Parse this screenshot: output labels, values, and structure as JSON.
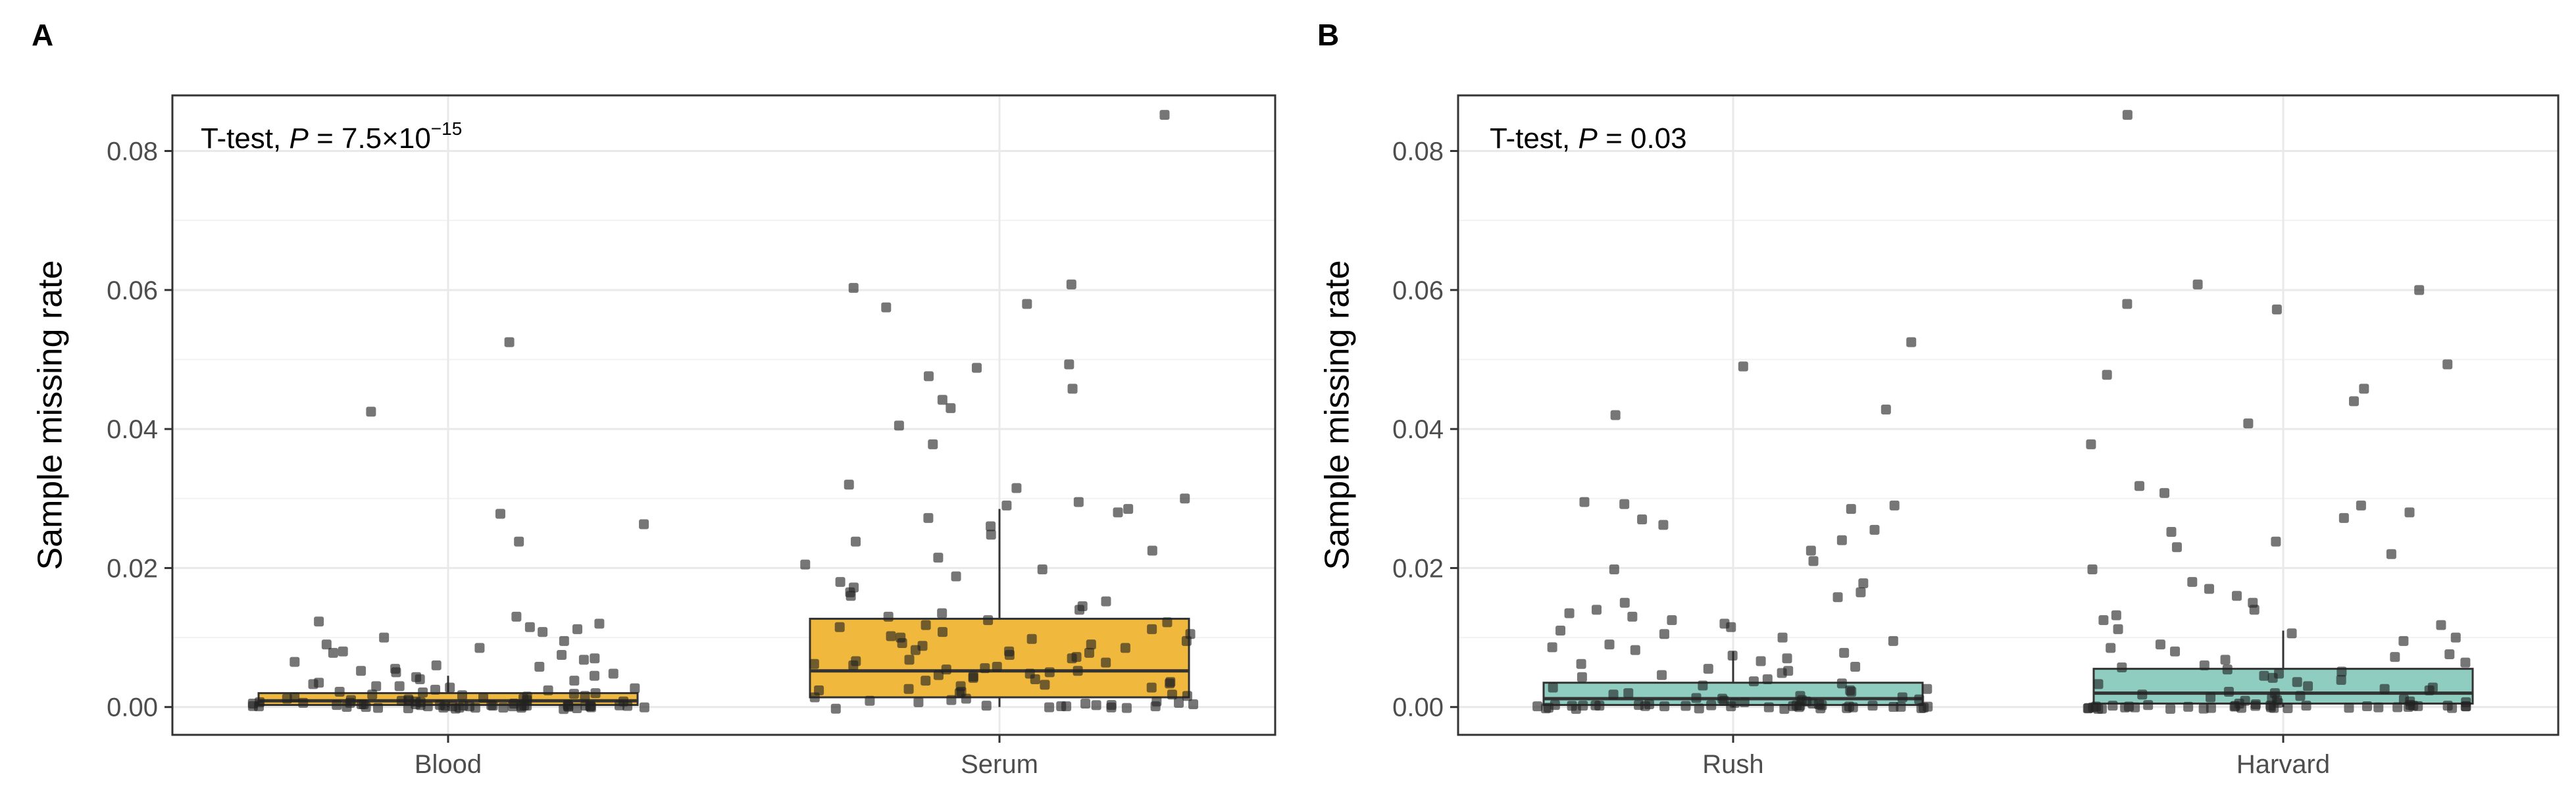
{
  "panels": [
    {
      "letter": "A",
      "test_label": "T-test, ",
      "p_symbol": "P",
      "p_value": " = 7.5×10",
      "p_exponent": "−15"
    },
    {
      "letter": "B",
      "test_label": "T-test, ",
      "p_symbol": "P",
      "p_value": " = 0.03",
      "p_exponent": ""
    }
  ],
  "colors": {
    "panel_a_box": "#F0B93E",
    "panel_b_box": "#8ECDBF",
    "point": "#222222",
    "grid": "#e9e9e9",
    "frame": "#333333"
  },
  "chart_data": [
    {
      "type": "box",
      "title": "",
      "xlabel": "",
      "ylabel": "Sample missing rate",
      "ylim": [
        -0.004,
        0.088
      ],
      "yticks": [
        0.0,
        0.02,
        0.04,
        0.06,
        0.08
      ],
      "ytick_labels": [
        "0.00",
        "0.02",
        "0.04",
        "0.06",
        "0.08"
      ],
      "grid": true,
      "categories": [
        "Blood",
        "Serum"
      ],
      "boxes": [
        {
          "category": "Blood",
          "q1": 0.0003,
          "median": 0.0009,
          "q3": 0.002,
          "whisker_low": 0.0,
          "whisker_high": 0.0045,
          "color": "#F0B93E"
        },
        {
          "category": "Serum",
          "q1": 0.0014,
          "median": 0.0052,
          "q3": 0.0127,
          "whisker_low": 0.0,
          "whisker_high": 0.0285,
          "color": "#F0B93E"
        }
      ],
      "points": [
        {
          "category": "Blood",
          "values": [
            0.0525,
            0.0425,
            0.0278,
            0.0263,
            0.0238,
            0.013,
            0.0123,
            0.012,
            0.0115,
            0.0112,
            0.0108,
            0.01,
            0.0095,
            0.009,
            0.0085,
            0.008,
            0.0078,
            0.0075,
            0.007,
            0.0068,
            0.0065,
            0.006,
            0.0058,
            0.0055,
            0.0052,
            0.005,
            0.0048,
            0.0045,
            0.0043,
            0.004,
            0.0038,
            0.0035,
            0.0033,
            0.003,
            0.003,
            0.0028,
            0.0027,
            0.0025,
            0.0024,
            0.0022,
            0.0021,
            0.002,
            0.0019,
            0.0018,
            0.0017,
            0.0016,
            0.0015,
            0.0014,
            0.0013,
            0.0012,
            0.0012,
            0.0011,
            0.001,
            0.001,
            0.0009,
            0.0009,
            0.0008,
            0.0008,
            0.0007,
            0.0007,
            0.0006,
            0.0006,
            0.0005,
            0.0005,
            0.0004,
            0.0004,
            0.0004,
            0.0003,
            0.0003,
            0.0003,
            0.0002,
            0.0002,
            0.0002,
            0.0002,
            0.0001,
            0.0001,
            0.0001,
            0.0001,
            0.0001,
            0.0,
            0.0,
            0.0,
            0.0,
            0.0,
            0.0,
            0.0,
            0.0,
            0.0,
            0.0,
            0.0,
            0.0,
            0.0,
            0.0,
            0.0,
            0.0,
            0.0,
            0.0,
            0.0,
            0.0,
            0.0,
            0.0,
            0.0,
            0.0,
            0.0,
            0.0
          ]
        },
        {
          "category": "Serum",
          "values": [
            0.0852,
            0.0608,
            0.0603,
            0.058,
            0.0575,
            0.0493,
            0.0488,
            0.0476,
            0.0458,
            0.0442,
            0.043,
            0.0405,
            0.0378,
            0.032,
            0.0315,
            0.03,
            0.0295,
            0.029,
            0.0285,
            0.028,
            0.0272,
            0.026,
            0.0248,
            0.0238,
            0.0225,
            0.0215,
            0.0205,
            0.0198,
            0.0188,
            0.018,
            0.0172,
            0.0165,
            0.016,
            0.0152,
            0.0145,
            0.014,
            0.0135,
            0.013,
            0.0125,
            0.0122,
            0.0118,
            0.0115,
            0.0112,
            0.0108,
            0.0105,
            0.0102,
            0.01,
            0.0098,
            0.0095,
            0.0092,
            0.009,
            0.0088,
            0.0085,
            0.0082,
            0.008,
            0.0078,
            0.0075,
            0.0072,
            0.007,
            0.0068,
            0.0066,
            0.0064,
            0.0062,
            0.006,
            0.0058,
            0.0056,
            0.0054,
            0.0052,
            0.005,
            0.0048,
            0.0046,
            0.0044,
            0.0042,
            0.004,
            0.0038,
            0.0036,
            0.0034,
            0.0032,
            0.003,
            0.0028,
            0.0026,
            0.0024,
            0.0022,
            0.002,
            0.0018,
            0.0016,
            0.0014,
            0.0012,
            0.001,
            0.0009,
            0.0008,
            0.0007,
            0.0006,
            0.0005,
            0.0004,
            0.0003,
            0.0002,
            0.0001,
            0.0,
            0.0,
            0.0,
            0.0,
            0.0,
            0.0,
            0.0
          ]
        }
      ]
    },
    {
      "type": "box",
      "title": "",
      "xlabel": "",
      "ylabel": "Sample missing rate",
      "ylim": [
        -0.004,
        0.088
      ],
      "yticks": [
        0.0,
        0.02,
        0.04,
        0.06,
        0.08
      ],
      "ytick_labels": [
        "0.00",
        "0.02",
        "0.04",
        "0.06",
        "0.08"
      ],
      "grid": true,
      "categories": [
        "Rush",
        "Harvard"
      ],
      "boxes": [
        {
          "category": "Rush",
          "q1": 0.0003,
          "median": 0.0012,
          "q3": 0.0035,
          "whisker_low": 0.0,
          "whisker_high": 0.008,
          "color": "#8ECDBF"
        },
        {
          "category": "Harvard",
          "q1": 0.0005,
          "median": 0.002,
          "q3": 0.0055,
          "whisker_low": 0.0,
          "whisker_high": 0.011,
          "color": "#8ECDBF"
        }
      ],
      "points": [
        {
          "category": "Rush",
          "values": [
            0.0525,
            0.049,
            0.0428,
            0.042,
            0.0295,
            0.0292,
            0.029,
            0.0285,
            0.027,
            0.0262,
            0.0255,
            0.024,
            0.0225,
            0.021,
            0.0198,
            0.0178,
            0.0165,
            0.0158,
            0.015,
            0.014,
            0.0135,
            0.013,
            0.0125,
            0.012,
            0.0115,
            0.011,
            0.0105,
            0.01,
            0.0095,
            0.009,
            0.0086,
            0.0082,
            0.0078,
            0.0074,
            0.007,
            0.0066,
            0.0062,
            0.0058,
            0.0055,
            0.0052,
            0.0049,
            0.0046,
            0.0043,
            0.004,
            0.0037,
            0.0034,
            0.0031,
            0.0028,
            0.0026,
            0.0024,
            0.0022,
            0.002,
            0.0018,
            0.0016,
            0.0014,
            0.0013,
            0.0012,
            0.0011,
            0.001,
            0.0009,
            0.0008,
            0.0007,
            0.0006,
            0.0005,
            0.0004,
            0.0004,
            0.0003,
            0.0003,
            0.0002,
            0.0002,
            0.0001,
            0.0001,
            0.0001,
            0.0,
            0.0,
            0.0,
            0.0,
            0.0,
            0.0,
            0.0,
            0.0,
            0.0,
            0.0,
            0.0,
            0.0,
            0.0,
            0.0,
            0.0,
            0.0,
            0.0,
            0.0,
            0.0,
            0.0,
            0.0,
            0.0,
            0.0,
            0.0,
            0.0,
            0.0
          ]
        },
        {
          "category": "Harvard",
          "values": [
            0.0852,
            0.0608,
            0.06,
            0.058,
            0.0572,
            0.0493,
            0.0478,
            0.0458,
            0.044,
            0.0408,
            0.0378,
            0.0318,
            0.0308,
            0.029,
            0.028,
            0.0272,
            0.0252,
            0.0238,
            0.023,
            0.022,
            0.0198,
            0.018,
            0.017,
            0.016,
            0.015,
            0.014,
            0.0132,
            0.0125,
            0.0118,
            0.0112,
            0.0106,
            0.01,
            0.0095,
            0.009,
            0.0085,
            0.008,
            0.0076,
            0.0072,
            0.0068,
            0.0064,
            0.006,
            0.0057,
            0.0054,
            0.0051,
            0.0048,
            0.0045,
            0.0042,
            0.0039,
            0.0036,
            0.0033,
            0.003,
            0.0028,
            0.0026,
            0.0024,
            0.0022,
            0.002,
            0.0018,
            0.0016,
            0.0014,
            0.0012,
            0.0011,
            0.001,
            0.0009,
            0.0008,
            0.0007,
            0.0006,
            0.0005,
            0.0004,
            0.0003,
            0.0002,
            0.0002,
            0.0001,
            0.0001,
            0.0,
            0.0,
            0.0,
            0.0,
            0.0,
            0.0,
            0.0,
            0.0,
            0.0,
            0.0,
            0.0,
            0.0,
            0.0,
            0.0,
            0.0,
            0.0,
            0.0,
            0.0,
            0.0,
            0.0,
            0.0,
            0.0,
            0.0,
            0.0,
            0.0,
            0.0,
            0.0,
            0.0,
            0.0,
            0.0,
            0.0
          ]
        }
      ]
    }
  ]
}
